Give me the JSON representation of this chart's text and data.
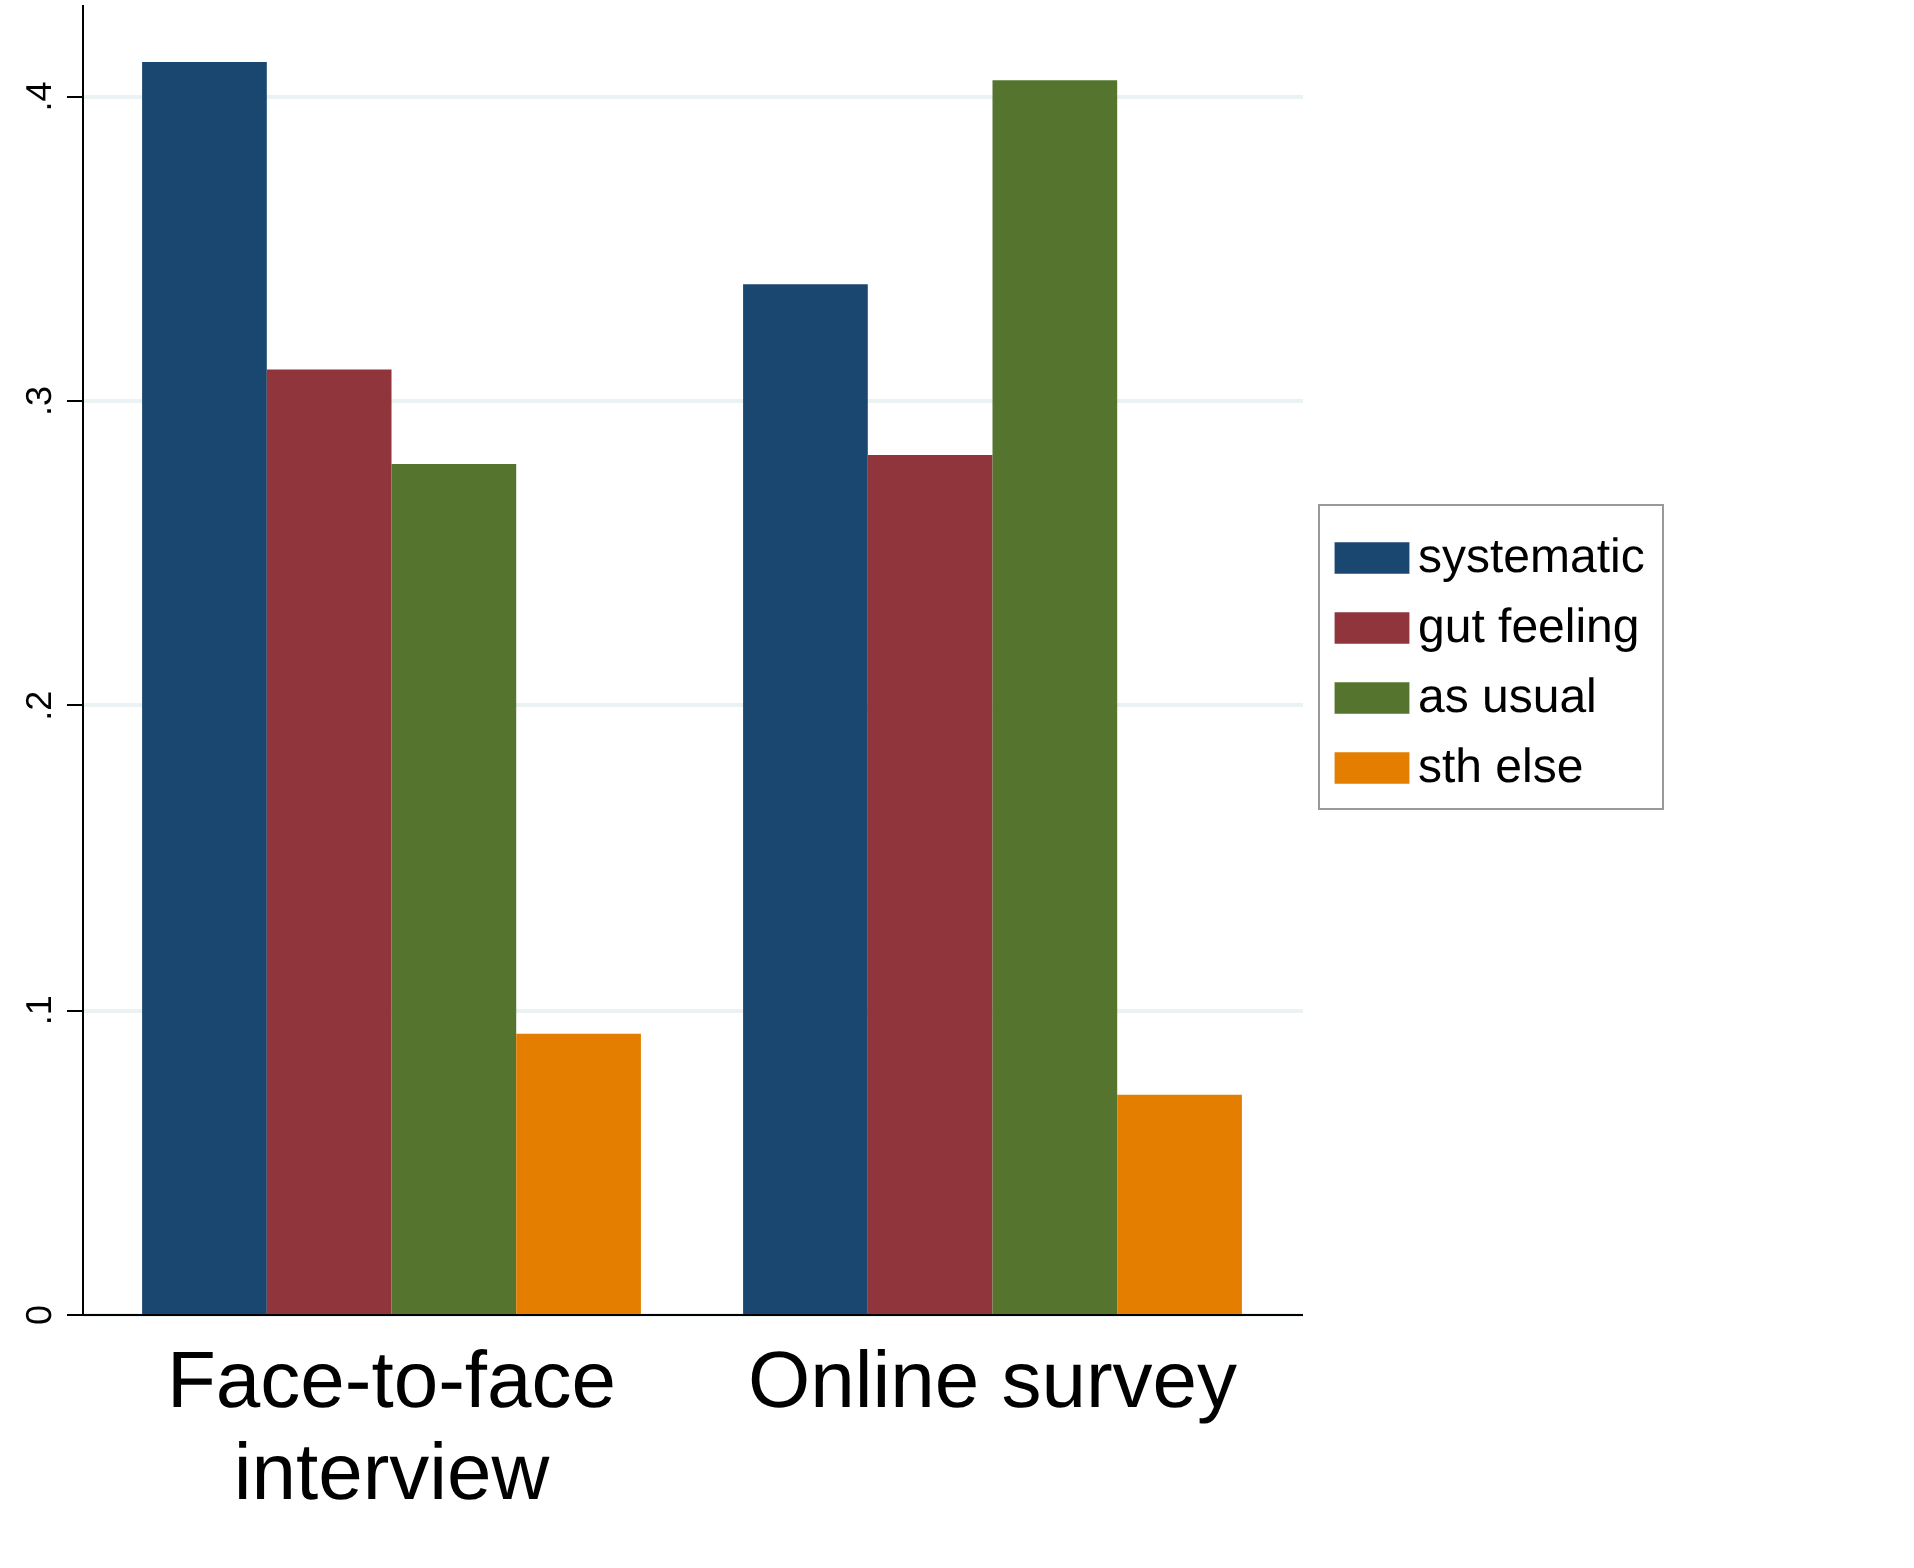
{
  "chart_data": {
    "type": "bar",
    "categories": [
      "Face-to-face interview",
      "Online survey"
    ],
    "series": [
      {
        "name": "systematic",
        "color": "#1a476f",
        "values": [
          0.411,
          0.338
        ]
      },
      {
        "name": "gut feeling",
        "color": "#90353b",
        "values": [
          0.31,
          0.282
        ]
      },
      {
        "name": "as usual",
        "color": "#55752f",
        "values": [
          0.279,
          0.405
        ]
      },
      {
        "name": "sth else",
        "color": "#e37e00",
        "values": [
          0.092,
          0.072
        ]
      }
    ],
    "ylim": [
      0,
      0.43
    ],
    "yticks": [
      0,
      {
        "value": 0.1,
        "label": ".1"
      },
      {
        "value": 0.2,
        "label": ".2"
      },
      {
        "value": 0.3,
        "label": ".3"
      },
      {
        "value": 0.4,
        "label": ".4"
      }
    ],
    "grid": "y",
    "legend": "right"
  }
}
